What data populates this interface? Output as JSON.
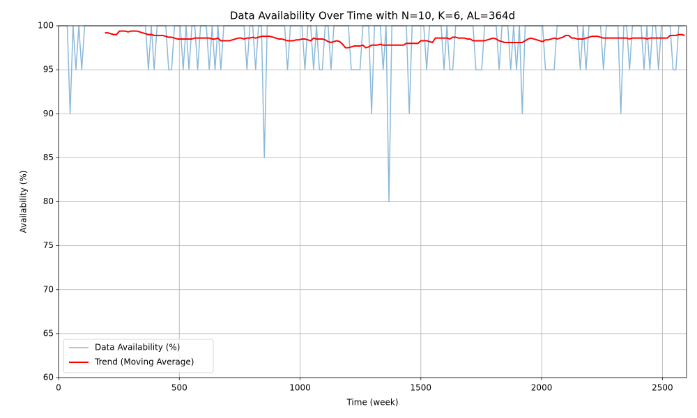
{
  "chart_data": {
    "type": "line",
    "title": "Data Availability Over Time with N=10, K=6, AL=364d",
    "x_label": "Time (week)",
    "y_label": "Availability (%)",
    "x": [
      0,
      12,
      24,
      36,
      48,
      60,
      72,
      84,
      96,
      108,
      120,
      132,
      144,
      156,
      168,
      180,
      192,
      204,
      216,
      228,
      240,
      252,
      264,
      276,
      288,
      300,
      312,
      324,
      336,
      348,
      360,
      372,
      384,
      396,
      408,
      420,
      432,
      444,
      456,
      468,
      480,
      492,
      504,
      516,
      528,
      540,
      552,
      564,
      576,
      588,
      600,
      612,
      624,
      636,
      648,
      660,
      672,
      684,
      696,
      708,
      720,
      732,
      744,
      756,
      768,
      780,
      792,
      804,
      816,
      828,
      840,
      852,
      864,
      876,
      888,
      900,
      912,
      924,
      936,
      948,
      960,
      972,
      984,
      996,
      1008,
      1020,
      1032,
      1044,
      1056,
      1068,
      1080,
      1092,
      1104,
      1116,
      1128,
      1140,
      1152,
      1164,
      1176,
      1188,
      1200,
      1212,
      1224,
      1236,
      1248,
      1260,
      1272,
      1284,
      1296,
      1308,
      1320,
      1332,
      1344,
      1356,
      1368,
      1380,
      1392,
      1404,
      1416,
      1428,
      1440,
      1452,
      1464,
      1476,
      1488,
      1500,
      1512,
      1524,
      1536,
      1548,
      1560,
      1572,
      1584,
      1596,
      1608,
      1620,
      1632,
      1644,
      1656,
      1668,
      1680,
      1692,
      1704,
      1716,
      1728,
      1740,
      1752,
      1764,
      1776,
      1788,
      1800,
      1812,
      1824,
      1836,
      1848,
      1860,
      1872,
      1884,
      1896,
      1908,
      1920,
      1932,
      1944,
      1956,
      1968,
      1980,
      1992,
      2004,
      2016,
      2028,
      2040,
      2052,
      2064,
      2076,
      2088,
      2100,
      2112,
      2124,
      2136,
      2148,
      2160,
      2172,
      2184,
      2196,
      2208,
      2220,
      2232,
      2244,
      2256,
      2268,
      2280,
      2292,
      2304,
      2316,
      2328,
      2340,
      2352,
      2364,
      2376,
      2388,
      2400,
      2412,
      2424,
      2436,
      2448,
      2460,
      2472,
      2484,
      2496,
      2508,
      2520,
      2532,
      2544,
      2556,
      2568,
      2580,
      2592
    ],
    "series": [
      {
        "name": "Data Availability (%)",
        "color": "#8ab9d9",
        "width": 1.5,
        "values": [
          100,
          100,
          100,
          100,
          90,
          100,
          95,
          100,
          95,
          100,
          100,
          100,
          100,
          100,
          100,
          100,
          100,
          100,
          100,
          100,
          100,
          100,
          100,
          100,
          100,
          100,
          100,
          100,
          100,
          100,
          100,
          95,
          100,
          95,
          100,
          100,
          100,
          100,
          95,
          95,
          100,
          100,
          100,
          95,
          100,
          95,
          100,
          100,
          95,
          100,
          100,
          100,
          95,
          100,
          95,
          100,
          95,
          100,
          100,
          100,
          100,
          100,
          100,
          100,
          100,
          95,
          100,
          100,
          95,
          100,
          100,
          85,
          100,
          100,
          100,
          100,
          100,
          100,
          100,
          95,
          100,
          100,
          100,
          100,
          100,
          95,
          100,
          100,
          95,
          100,
          95,
          95,
          100,
          100,
          95,
          100,
          100,
          100,
          100,
          100,
          100,
          95,
          95,
          95,
          95,
          100,
          100,
          100,
          90,
          100,
          100,
          100,
          95,
          100,
          80,
          100,
          100,
          100,
          100,
          100,
          100,
          90,
          100,
          100,
          100,
          100,
          100,
          95,
          100,
          100,
          100,
          100,
          100,
          95,
          100,
          95,
          95,
          100,
          100,
          100,
          100,
          100,
          100,
          100,
          95,
          95,
          95,
          100,
          100,
          100,
          100,
          100,
          95,
          100,
          100,
          100,
          95,
          100,
          95,
          100,
          90,
          100,
          100,
          100,
          100,
          100,
          100,
          100,
          95,
          95,
          95,
          95,
          100,
          100,
          100,
          100,
          100,
          100,
          100,
          100,
          95,
          100,
          95,
          100,
          100,
          100,
          100,
          100,
          95,
          100,
          100,
          100,
          100,
          100,
          90,
          100,
          100,
          95,
          100,
          100,
          100,
          100,
          95,
          100,
          95,
          100,
          100,
          95,
          100,
          100,
          100,
          100,
          95,
          95,
          100,
          100,
          100
        ]
      },
      {
        "name": "Trend (Moving Average)",
        "color": "#ff0000",
        "width": 2,
        "values": [
          null,
          null,
          null,
          null,
          null,
          null,
          null,
          null,
          null,
          null,
          null,
          null,
          null,
          null,
          null,
          null,
          99.2,
          99.2,
          99.1,
          99.0,
          99.0,
          99.4,
          99.4,
          99.4,
          99.3,
          99.4,
          99.4,
          99.4,
          99.3,
          99.2,
          99.1,
          99.0,
          99.0,
          98.9,
          98.9,
          98.9,
          98.9,
          98.8,
          98.7,
          98.7,
          98.6,
          98.5,
          98.5,
          98.5,
          98.5,
          98.5,
          98.5,
          98.6,
          98.6,
          98.6,
          98.6,
          98.6,
          98.6,
          98.5,
          98.5,
          98.6,
          98.3,
          98.3,
          98.3,
          98.3,
          98.4,
          98.5,
          98.6,
          98.6,
          98.5,
          98.6,
          98.6,
          98.7,
          98.6,
          98.7,
          98.8,
          98.8,
          98.8,
          98.8,
          98.7,
          98.6,
          98.5,
          98.5,
          98.4,
          98.3,
          98.3,
          98.3,
          98.4,
          98.4,
          98.5,
          98.5,
          98.4,
          98.3,
          98.6,
          98.5,
          98.5,
          98.5,
          98.4,
          98.2,
          98.1,
          98.2,
          98.3,
          98.2,
          97.9,
          97.5,
          97.5,
          97.6,
          97.7,
          97.7,
          97.7,
          97.8,
          97.5,
          97.6,
          97.8,
          97.8,
          97.8,
          97.9,
          97.8,
          97.8,
          97.8,
          97.8,
          97.8,
          97.8,
          97.8,
          97.8,
          98.0,
          98.0,
          98.0,
          98.0,
          98.0,
          98.3,
          98.3,
          98.3,
          98.2,
          98.1,
          98.6,
          98.6,
          98.6,
          98.6,
          98.6,
          98.5,
          98.7,
          98.7,
          98.6,
          98.6,
          98.6,
          98.5,
          98.5,
          98.3,
          98.3,
          98.3,
          98.3,
          98.3,
          98.4,
          98.5,
          98.6,
          98.5,
          98.3,
          98.2,
          98.1,
          98.1,
          98.1,
          98.1,
          98.1,
          98.1,
          98.1,
          98.3,
          98.5,
          98.6,
          98.5,
          98.4,
          98.3,
          98.2,
          98.4,
          98.4,
          98.5,
          98.6,
          98.5,
          98.6,
          98.7,
          98.9,
          98.9,
          98.6,
          98.6,
          98.5,
          98.5,
          98.5,
          98.6,
          98.7,
          98.8,
          98.8,
          98.8,
          98.7,
          98.6,
          98.6,
          98.6,
          98.6,
          98.6,
          98.6,
          98.6,
          98.6,
          98.6,
          98.5,
          98.6,
          98.6,
          98.6,
          98.6,
          98.6,
          98.5,
          98.6,
          98.6,
          98.6,
          98.6,
          98.6,
          98.6,
          98.6,
          98.9,
          98.9,
          98.9,
          99.0,
          99.0,
          98.9
        ]
      }
    ],
    "xlim": [
      0,
      2600
    ],
    "ylim": [
      60,
      100
    ],
    "xticks": [
      0,
      500,
      1000,
      1500,
      2000,
      2500
    ],
    "yticks": [
      60,
      65,
      70,
      75,
      80,
      85,
      90,
      95,
      100
    ],
    "grid": true,
    "legend": "lower left"
  }
}
